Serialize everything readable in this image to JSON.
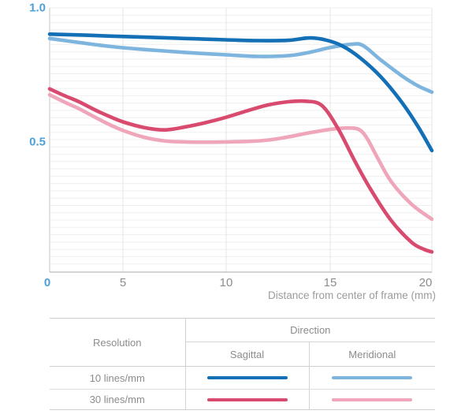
{
  "chart_data": {
    "type": "line",
    "title": "",
    "xlabel": "Distance from center of frame (mm)",
    "xlim": [
      0,
      20
    ],
    "ylim": [
      0,
      1.0
    ],
    "x_ticks": [
      {
        "value": 0,
        "label": "0",
        "color": "#4da0d8"
      },
      {
        "value": 5,
        "label": "5",
        "color": "#8c8c8c"
      },
      {
        "value": 10,
        "label": "10",
        "color": "#8c8c8c"
      },
      {
        "value": 15,
        "label": "15",
        "color": "#8c8c8c"
      },
      {
        "value": 20,
        "label": "20",
        "color": "#8c8c8c"
      }
    ],
    "y_ticks": [
      {
        "value": 1.0,
        "label": "1.0",
        "color": "#4da0d8"
      },
      {
        "value": 0.5,
        "label": "0.5",
        "color": "#4da0d8"
      }
    ],
    "grid": {
      "horizontal_minor": true,
      "vertical_at": [
        5,
        10,
        15,
        20
      ]
    },
    "legend_position": "table-below",
    "series": [
      {
        "name": "10 lines/mm Sagittal",
        "resolution": "10 lines/mm",
        "direction": "Sagittal",
        "color": "#1470b6",
        "points": [
          [
            0,
            0.902
          ],
          [
            2,
            0.899
          ],
          [
            4,
            0.895
          ],
          [
            6,
            0.891
          ],
          [
            8,
            0.886
          ],
          [
            10,
            0.881
          ],
          [
            11.5,
            0.878
          ],
          [
            13,
            0.879
          ],
          [
            14,
            0.888
          ],
          [
            14.8,
            0.88
          ],
          [
            15.6,
            0.858
          ],
          [
            16.5,
            0.812
          ],
          [
            17.5,
            0.742
          ],
          [
            18.5,
            0.65
          ],
          [
            19.3,
            0.56
          ],
          [
            20,
            0.468
          ]
        ]
      },
      {
        "name": "10 lines/mm Meridional",
        "resolution": "10 lines/mm",
        "direction": "Meridional",
        "color": "#7eb5de",
        "points": [
          [
            0,
            0.886
          ],
          [
            2,
            0.871
          ],
          [
            4,
            0.857
          ],
          [
            6,
            0.845
          ],
          [
            8,
            0.834
          ],
          [
            10,
            0.825
          ],
          [
            11.5,
            0.819
          ],
          [
            13,
            0.822
          ],
          [
            14,
            0.834
          ],
          [
            15,
            0.852
          ],
          [
            16,
            0.864
          ],
          [
            16.6,
            0.86
          ],
          [
            17.5,
            0.805
          ],
          [
            18.5,
            0.748
          ],
          [
            19.3,
            0.71
          ],
          [
            20,
            0.686
          ]
        ]
      },
      {
        "name": "30 lines/mm Sagittal",
        "resolution": "30 lines/mm",
        "direction": "Sagittal",
        "color": "#d94a6f",
        "points": [
          [
            0,
            0.698
          ],
          [
            1,
            0.673
          ],
          [
            2,
            0.65
          ],
          [
            3,
            0.622
          ],
          [
            4,
            0.597
          ],
          [
            5,
            0.575
          ],
          [
            6,
            0.554
          ],
          [
            7,
            0.545
          ],
          [
            8,
            0.556
          ],
          [
            9,
            0.572
          ],
          [
            10,
            0.592
          ],
          [
            11,
            0.616
          ],
          [
            12,
            0.638
          ],
          [
            13,
            0.65
          ],
          [
            13.8,
            0.652
          ],
          [
            14.6,
            0.636
          ],
          [
            15.4,
            0.548
          ],
          [
            16.2,
            0.43
          ],
          [
            17,
            0.322
          ],
          [
            18,
            0.207
          ],
          [
            19,
            0.126
          ],
          [
            19.6,
            0.1
          ],
          [
            20,
            0.09
          ]
        ]
      },
      {
        "name": "30 lines/mm Meridional",
        "resolution": "30 lines/mm",
        "direction": "Meridional",
        "color": "#efa6ba",
        "points": [
          [
            0,
            0.676
          ],
          [
            1,
            0.649
          ],
          [
            2,
            0.624
          ],
          [
            3,
            0.595
          ],
          [
            4,
            0.567
          ],
          [
            5,
            0.543
          ],
          [
            6,
            0.518
          ],
          [
            7,
            0.504
          ],
          [
            8,
            0.5
          ],
          [
            9,
            0.499
          ],
          [
            10,
            0.5
          ],
          [
            11,
            0.502
          ],
          [
            12,
            0.507
          ],
          [
            13,
            0.519
          ],
          [
            14,
            0.534
          ],
          [
            15,
            0.547
          ],
          [
            15.8,
            0.552
          ],
          [
            16.4,
            0.547
          ],
          [
            16.8,
            0.515
          ],
          [
            17.3,
            0.445
          ],
          [
            18,
            0.352
          ],
          [
            19,
            0.268
          ],
          [
            20,
            0.212
          ]
        ]
      }
    ]
  },
  "axis_title": "Distance from center of frame (mm)",
  "legend_table": {
    "resolution_header": "Resolution",
    "direction_header": "Direction",
    "sagittal_header": "Sagittal",
    "meridional_header": "Meridional",
    "rows": [
      {
        "label": "10 lines/mm",
        "sagittal_color": "#1470b6",
        "meridional_color": "#7eb5de"
      },
      {
        "label": "30 lines/mm",
        "sagittal_color": "#d94a6f",
        "meridional_color": "#efa6ba"
      }
    ]
  },
  "colors": {
    "tick_blue": "#4da0d8",
    "tick_gray": "#8c8c8c",
    "axis_title_gray": "#9b9b9b",
    "grid_minor": "#efefef",
    "grid_major_vertical": "#e4e4e4",
    "axis_left": "#c4c4c4",
    "axis_bottom": "#a9a9a9",
    "table_text": "#8c8c8c"
  }
}
